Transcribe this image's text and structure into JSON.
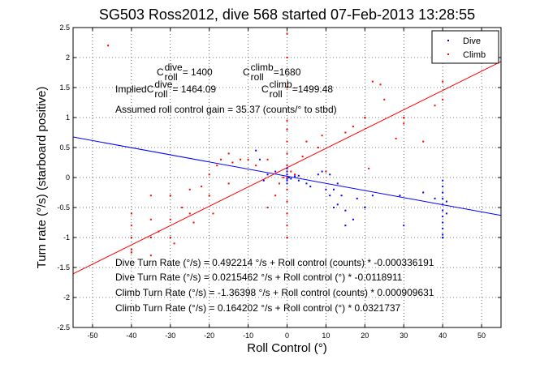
{
  "chart_data": {
    "type": "scatter",
    "title": "SG503 Ross2012, dive 568 started 07-Feb-2013 13:28:55",
    "xlabel": "Roll Control (°)",
    "ylabel": "Turn rate (°/s) (starboard positive)",
    "xlim": [
      -55,
      55
    ],
    "ylim": [
      -2.5,
      2.5
    ],
    "x_ticks": [
      -50,
      -40,
      -30,
      -20,
      -10,
      0,
      10,
      20,
      30,
      40,
      50
    ],
    "y_ticks": [
      -2.5,
      -2,
      -1.5,
      -1,
      -0.5,
      0,
      0.5,
      1,
      1.5,
      2,
      2.5
    ],
    "grid": true,
    "legend": {
      "position": "top-right"
    },
    "colors": {
      "dive": "#0000ff",
      "climb": "#ff0000",
      "axes": "#000000"
    },
    "series": [
      {
        "name": "Dive",
        "marker": "dot",
        "color": "#0000ff",
        "points": [
          [
            0,
            0.05
          ],
          [
            0,
            -0.05
          ],
          [
            0,
            0.1
          ],
          [
            0,
            -0.1
          ],
          [
            0,
            0.15
          ],
          [
            0,
            -0.02
          ],
          [
            0.5,
            0.0
          ],
          [
            1,
            -0.02
          ],
          [
            2,
            0.02
          ],
          [
            3,
            0.03
          ],
          [
            3,
            -0.05
          ],
          [
            5,
            -0.1
          ],
          [
            6,
            -0.15
          ],
          [
            8,
            0.05
          ],
          [
            9,
            0.1
          ],
          [
            10,
            -0.2
          ],
          [
            11,
            -0.3
          ],
          [
            11,
            0.05
          ],
          [
            12,
            -0.5
          ],
          [
            12,
            -0.2
          ],
          [
            13,
            -0.1
          ],
          [
            13,
            -0.45
          ],
          [
            14,
            -0.3
          ],
          [
            15,
            -0.55
          ],
          [
            15,
            -0.8
          ],
          [
            17,
            -0.7
          ],
          [
            18,
            -0.35
          ],
          [
            20,
            -0.5
          ],
          [
            22,
            -0.3
          ],
          [
            29,
            -0.3
          ],
          [
            30,
            -0.8
          ],
          [
            35,
            -0.25
          ],
          [
            38,
            -0.35
          ],
          [
            40,
            -0.05
          ],
          [
            40,
            -0.15
          ],
          [
            40,
            -0.25
          ],
          [
            40,
            -0.35
          ],
          [
            40,
            -0.45
          ],
          [
            40,
            -0.55
          ],
          [
            40,
            -0.65
          ],
          [
            40,
            -0.75
          ],
          [
            40,
            -0.85
          ],
          [
            40,
            -0.95
          ],
          [
            40,
            -1.0
          ],
          [
            41,
            -0.4
          ],
          [
            41,
            -0.6
          ],
          [
            -3,
            0.1
          ],
          [
            -5,
            0.05
          ],
          [
            -7,
            0.3
          ],
          [
            -8,
            0.45
          ],
          [
            -6,
            -0.05
          ]
        ]
      },
      {
        "name": "Climb",
        "marker": "dot",
        "color": "#ff0000",
        "points": [
          [
            -46,
            2.2
          ],
          [
            -40,
            -0.6
          ],
          [
            -40,
            -0.8
          ],
          [
            -40,
            -1.0
          ],
          [
            -40,
            -1.2
          ],
          [
            -40,
            -1.25
          ],
          [
            -35,
            -0.3
          ],
          [
            -35,
            -0.7
          ],
          [
            -35,
            -1.0
          ],
          [
            -35,
            -1.3
          ],
          [
            -33,
            -0.9
          ],
          [
            -30,
            -0.3
          ],
          [
            -30,
            -0.7
          ],
          [
            -30,
            -1.0
          ],
          [
            -29,
            -1.1
          ],
          [
            -27,
            -0.5
          ],
          [
            -25,
            -0.2
          ],
          [
            -25,
            -0.6
          ],
          [
            -24,
            -0.75
          ],
          [
            -22,
            -0.15
          ],
          [
            -20,
            0.05
          ],
          [
            -20,
            -0.3
          ],
          [
            -19,
            -0.6
          ],
          [
            -18,
            0.2
          ],
          [
            -17,
            0.3
          ],
          [
            -15,
            -0.1
          ],
          [
            -15,
            0.4
          ],
          [
            -14,
            0.25
          ],
          [
            -12,
            0.3
          ],
          [
            -10,
            0.3
          ],
          [
            -8,
            0.2
          ],
          [
            -5,
            0.3
          ],
          [
            -5,
            -0.5
          ],
          [
            -3,
            -0.3
          ],
          [
            -2,
            -0.1
          ],
          [
            -1,
            0.0
          ],
          [
            0,
            -1.0
          ],
          [
            0,
            -0.8
          ],
          [
            0,
            -0.6
          ],
          [
            0,
            -0.4
          ],
          [
            0,
            -0.2
          ],
          [
            0,
            0.0
          ],
          [
            0,
            0.2
          ],
          [
            0,
            0.4
          ],
          [
            0,
            0.6
          ],
          [
            0,
            0.8
          ],
          [
            0,
            0.95
          ],
          [
            0,
            1.5
          ],
          [
            0,
            2.0
          ],
          [
            0,
            2.4
          ],
          [
            1,
            0.1
          ],
          [
            2,
            0.05
          ],
          [
            4,
            0.35
          ],
          [
            5,
            0.6
          ],
          [
            8,
            0.5
          ],
          [
            9,
            0.7
          ],
          [
            10,
            0.1
          ],
          [
            15,
            0.75
          ],
          [
            17,
            0.85
          ],
          [
            20,
            1.0
          ],
          [
            21,
            0.15
          ],
          [
            22,
            1.6
          ],
          [
            24,
            1.55
          ],
          [
            25,
            1.3
          ],
          [
            28,
            0.65
          ],
          [
            30,
            0.9
          ],
          [
            30,
            1.0
          ],
          [
            35,
            0.6
          ],
          [
            38,
            1.2
          ],
          [
            40,
            1.3
          ],
          [
            40,
            1.6
          ],
          [
            40,
            2.0
          ],
          [
            40,
            2.4
          ]
        ]
      }
    ],
    "fit_lines": [
      {
        "name": "Dive",
        "color": "#0000ff",
        "slope": -0.0118911,
        "intercept": 0.0215462
      },
      {
        "name": "Climb",
        "color": "#ff0000",
        "slope": 0.0321737,
        "intercept": 0.164202
      }
    ],
    "annotations": [
      {
        "id": "c-dive",
        "base": "C",
        "sup": "dive",
        "sub": "roll",
        "text": " = 1400"
      },
      {
        "id": "c-climb",
        "base": "C",
        "sup": "climb",
        "sub": "roll",
        "text": " =1680"
      },
      {
        "id": "implied-dive",
        "prefix": "Implied ",
        "base": "C",
        "sup": "dive",
        "sub": "roll",
        "text": " = 1464.09"
      },
      {
        "id": "implied-climb",
        "base": "C",
        "sup": "climb",
        "sub": "roll",
        "text": " =1499.48"
      },
      {
        "id": "gain",
        "text": "Assumed roll control gain = 35.37 (counts/° to stbd)"
      },
      {
        "id": "fit-dive-counts",
        "text": "Dive Turn Rate (°/s) = 0.492214 °/s + Roll control (counts) * -0.000336191"
      },
      {
        "id": "fit-dive-deg",
        "text": "Dive Turn Rate (°/s) = 0.0215462 °/s + Roll control (°) * -0.0118911"
      },
      {
        "id": "fit-climb-counts",
        "text": "Climb Turn Rate (°/s) = -1.36398 °/s + Roll control (counts) * 0.000909631"
      },
      {
        "id": "fit-climb-deg",
        "text": "Climb Turn Rate (°/s) = 0.164202 °/s + Roll control (°) * 0.0321737"
      }
    ]
  }
}
